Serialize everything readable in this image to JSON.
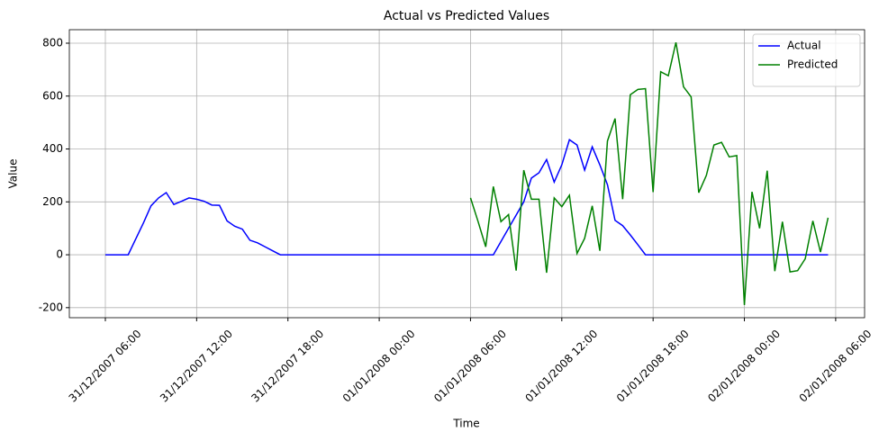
{
  "chart_data": {
    "type": "line",
    "title": "Actual vs Predicted Values",
    "x_label": "Time",
    "y_label": "Value",
    "x": [
      "31/12/2007 06:00",
      "31/12/2007 06:30",
      "31/12/2007 07:00",
      "31/12/2007 07:30",
      "31/12/2007 08:00",
      "31/12/2007 08:30",
      "31/12/2007 09:00",
      "31/12/2007 09:30",
      "31/12/2007 10:00",
      "31/12/2007 10:30",
      "31/12/2007 11:00",
      "31/12/2007 11:30",
      "31/12/2007 12:00",
      "31/12/2007 12:30",
      "31/12/2007 13:00",
      "31/12/2007 13:30",
      "31/12/2007 14:00",
      "31/12/2007 14:30",
      "31/12/2007 15:00",
      "31/12/2007 15:30",
      "31/12/2007 16:00",
      "31/12/2007 16:30",
      "31/12/2007 17:00",
      "31/12/2007 17:30",
      "31/12/2007 18:00",
      "31/12/2007 18:30",
      "31/12/2007 19:00",
      "31/12/2007 19:30",
      "31/12/2007 20:00",
      "31/12/2007 20:30",
      "31/12/2007 21:00",
      "31/12/2007 21:30",
      "31/12/2007 22:00",
      "31/12/2007 22:30",
      "31/12/2007 23:00",
      "31/12/2007 23:30",
      "01/01/2008 00:00",
      "01/01/2008 00:30",
      "01/01/2008 01:00",
      "01/01/2008 01:30",
      "01/01/2008 02:00",
      "01/01/2008 02:30",
      "01/01/2008 03:00",
      "01/01/2008 03:30",
      "01/01/2008 04:00",
      "01/01/2008 04:30",
      "01/01/2008 05:00",
      "01/01/2008 05:30",
      "01/01/2008 06:00",
      "01/01/2008 06:30",
      "01/01/2008 07:00",
      "01/01/2008 07:30",
      "01/01/2008 08:00",
      "01/01/2008 08:30",
      "01/01/2008 09:00",
      "01/01/2008 09:30",
      "01/01/2008 10:00",
      "01/01/2008 10:30",
      "01/01/2008 11:00",
      "01/01/2008 11:30",
      "01/01/2008 12:00",
      "01/01/2008 12:30",
      "01/01/2008 13:00",
      "01/01/2008 13:30",
      "01/01/2008 14:00",
      "01/01/2008 14:30",
      "01/01/2008 15:00",
      "01/01/2008 15:30",
      "01/01/2008 16:00",
      "01/01/2008 16:30",
      "01/01/2008 17:00",
      "01/01/2008 17:30",
      "01/01/2008 18:00",
      "01/01/2008 18:30",
      "01/01/2008 19:00",
      "01/01/2008 19:30",
      "01/01/2008 20:00",
      "01/01/2008 20:30",
      "01/01/2008 21:00",
      "01/01/2008 21:30",
      "01/01/2008 22:00",
      "01/01/2008 22:30",
      "01/01/2008 23:00",
      "01/01/2008 23:30",
      "02/01/2008 00:00",
      "02/01/2008 00:30",
      "02/01/2008 01:00",
      "02/01/2008 01:30",
      "02/01/2008 02:00",
      "02/01/2008 02:30",
      "02/01/2008 03:00",
      "02/01/2008 03:30",
      "02/01/2008 04:00",
      "02/01/2008 04:30",
      "02/01/2008 05:00",
      "02/01/2008 05:30"
    ],
    "series": [
      {
        "name": "Actual",
        "color": "#0000ff",
        "values": [
          0,
          0,
          0,
          0,
          60,
          120,
          185,
          215,
          235,
          190,
          202,
          215,
          210,
          202,
          188,
          187,
          128,
          108,
          97,
          55,
          45,
          30,
          15,
          0,
          0,
          0,
          0,
          0,
          0,
          0,
          0,
          0,
          0,
          0,
          0,
          0,
          0,
          0,
          0,
          0,
          0,
          0,
          0,
          0,
          0,
          0,
          0,
          0,
          0,
          0,
          0,
          0,
          50,
          100,
          150,
          200,
          290,
          310,
          360,
          275,
          340,
          435,
          415,
          320,
          408,
          340,
          265,
          130,
          110,
          75,
          38,
          0,
          0,
          0,
          0,
          0,
          0,
          0,
          0,
          0,
          0,
          0,
          0,
          0,
          0,
          0,
          0,
          0,
          0,
          0,
          0,
          0,
          0,
          0,
          0,
          0
        ]
      },
      {
        "name": "Predicted",
        "color": "#008000",
        "values": [
          null,
          null,
          null,
          null,
          null,
          null,
          null,
          null,
          null,
          null,
          null,
          null,
          null,
          null,
          null,
          null,
          null,
          null,
          null,
          null,
          null,
          null,
          null,
          null,
          null,
          null,
          null,
          null,
          null,
          null,
          null,
          null,
          null,
          null,
          null,
          null,
          null,
          null,
          null,
          null,
          null,
          null,
          null,
          null,
          null,
          null,
          null,
          null,
          215,
          125,
          30,
          258,
          125,
          152,
          -60,
          320,
          210,
          210,
          -68,
          215,
          182,
          225,
          5,
          62,
          185,
          15,
          430,
          515,
          210,
          605,
          625,
          628,
          237,
          692,
          677,
          803,
          635,
          597,
          235,
          300,
          415,
          425,
          370,
          375,
          -190,
          238,
          100,
          318,
          -62,
          125,
          -65,
          -60,
          -15,
          128,
          10,
          140
        ]
      }
    ],
    "xlim": [
      "31/12/2007 03:38",
      "02/01/2008 07:54"
    ],
    "xticks": [
      "31/12/2007 06:00",
      "31/12/2007 12:00",
      "31/12/2007 18:00",
      "01/01/2008 00:00",
      "01/01/2008 06:00",
      "01/01/2008 12:00",
      "01/01/2008 18:00",
      "02/01/2008 00:00",
      "02/01/2008 06:00"
    ],
    "ylim": [
      -238,
      851
    ],
    "yticks": [
      -200,
      0,
      200,
      400,
      600,
      800
    ],
    "grid": true,
    "legend": "upper-right"
  }
}
